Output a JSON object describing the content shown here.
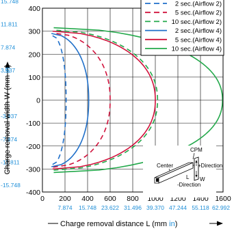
{
  "chart_data": {
    "type": "line",
    "xlabel": "Charge removal distance L (mm ",
    "xlabel_unit": "in",
    "xlabel_close": ")",
    "ylabel": "Charge removal width W (mm ",
    "ylabel_unit": "in",
    "ylabel_close": ")",
    "xlim": [
      0,
      1600
    ],
    "ylim": [
      -400,
      400
    ],
    "x_ticks": [
      {
        "mm": "0",
        "in": ""
      },
      {
        "mm": "200",
        "in": "7.874"
      },
      {
        "mm": "400",
        "in": "15.748"
      },
      {
        "mm": "600",
        "in": "23.622"
      },
      {
        "mm": "800",
        "in": "31.496"
      },
      {
        "mm": "1000",
        "in": "39.370"
      },
      {
        "mm": "1200",
        "in": "47.244"
      },
      {
        "mm": "1400",
        "in": "55.118"
      },
      {
        "mm": "1600",
        "in": "62.992"
      }
    ],
    "y_ticks": [
      {
        "mm": "400",
        "in": "15.748"
      },
      {
        "mm": "300",
        "in": "11.811"
      },
      {
        "mm": "200",
        "in": "7.874"
      },
      {
        "mm": "100",
        "in": "3.937"
      },
      {
        "mm": "0",
        "in": ""
      },
      {
        "mm": "-100",
        "in": "-3.937"
      },
      {
        "mm": "-200",
        "in": "-7.874"
      },
      {
        "mm": "-300",
        "in": "-11.811"
      },
      {
        "mm": "-400",
        "in": "-15.748"
      }
    ],
    "grid": true,
    "legend_position": "top-right",
    "series": [
      {
        "name": "2 sec.(Airflow 2)",
        "color": "#1f6fc9",
        "dashed": true,
        "start": 90,
        "peak": 210,
        "half_width": 280
      },
      {
        "name": "5 sec.(Airflow 2)",
        "color": "#d0103a",
        "dashed": true,
        "start": 95,
        "peak": 600,
        "half_width": 292
      },
      {
        "name": "10 sec.(Airflow 2)",
        "color": "#22a84a",
        "dashed": true,
        "start": 100,
        "peak": 1020,
        "half_width": 305
      },
      {
        "name": "2 sec.(Airflow 4)",
        "color": "#1f6fc9",
        "dashed": false,
        "start": 80,
        "peak": 410,
        "half_width": 290
      },
      {
        "name": "5 sec.(Airflow 4)",
        "color": "#d0103a",
        "dashed": false,
        "start": 90,
        "peak": 1000,
        "half_width": 300
      },
      {
        "name": "10 sec.(Airflow 4)",
        "color": "#22a84a",
        "dashed": false,
        "start": 100,
        "peak": 1595,
        "half_width": 315
      }
    ]
  },
  "inset": {
    "label_cpm": "CPM",
    "label_center": "Center",
    "label_plus_direction": "+Direction",
    "label_l": "L",
    "label_w": "W",
    "label_minus_direction": "-Direction"
  }
}
